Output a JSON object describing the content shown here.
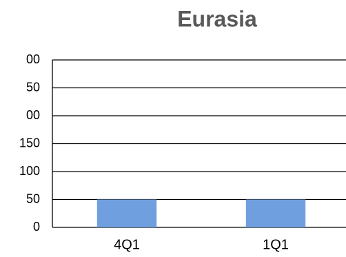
{
  "chart_data": {
    "type": "bar",
    "title": "Eurasia",
    "categories": [
      "4Q1",
      "1Q1"
    ],
    "values": [
      50,
      50
    ],
    "color": "#6f9fdf",
    "ylim": [
      0,
      300
    ],
    "yticks": [
      0,
      50,
      100,
      150,
      {
        "value": 200,
        "label": "00"
      },
      {
        "value": 250,
        "label": "50"
      },
      {
        "value": 300,
        "label": "00"
      }
    ],
    "grid": true
  }
}
